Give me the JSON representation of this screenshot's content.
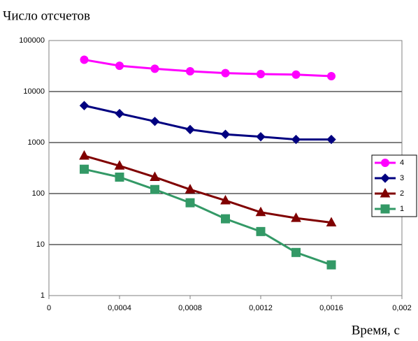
{
  "chart_data": {
    "type": "line",
    "title": "Число отсчетов",
    "x_label": "Время, с",
    "x": [
      0.0002,
      0.0004,
      0.0006,
      0.0008,
      0.001,
      0.0012,
      0.0014,
      0.0016
    ],
    "series": [
      {
        "name": "4",
        "color": "#ff00ff",
        "marker": "circle",
        "values": [
          42000,
          32000,
          28000,
          25000,
          23000,
          22000,
          21500,
          20000
        ]
      },
      {
        "name": "3",
        "color": "#000080",
        "marker": "diamond",
        "values": [
          5300,
          3700,
          2600,
          1800,
          1450,
          1300,
          1150,
          1150
        ]
      },
      {
        "name": "2",
        "color": "#800000",
        "marker": "triangle",
        "values": [
          550,
          350,
          210,
          120,
          73,
          43,
          33,
          27
        ]
      },
      {
        "name": "1",
        "color": "#339966",
        "marker": "square",
        "values": [
          300,
          210,
          120,
          66,
          32,
          18,
          7,
          4
        ]
      }
    ],
    "xlim": [
      0,
      0.002
    ],
    "xticks": [
      0,
      {
        "value": 0.0004,
        "label": "0,0004"
      },
      {
        "value": 0.0008,
        "label": "0,0008"
      },
      {
        "value": 0.0012,
        "label": "0,0012"
      },
      {
        "value": 0.0016,
        "label": "0,0016"
      },
      {
        "value": 0.002,
        "label": "0,002"
      }
    ],
    "ylim": [
      1,
      100000
    ],
    "yticks": [
      1,
      10,
      100,
      1000,
      10000,
      100000
    ],
    "y_log": true,
    "grid": true,
    "legend": "right"
  }
}
